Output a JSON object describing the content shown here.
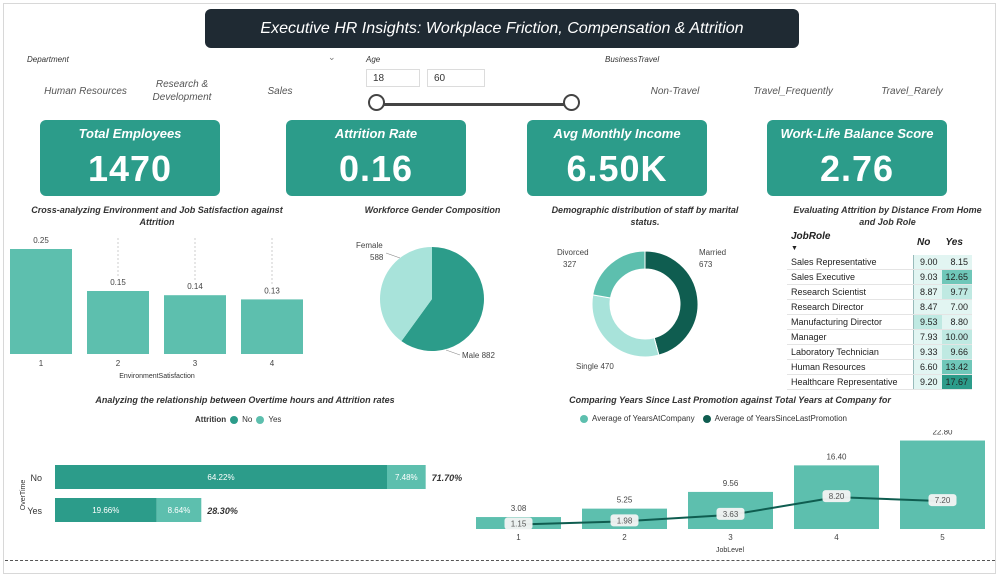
{
  "title": "Executive HR Insights: Workplace Friction, Compensation & Attrition",
  "slicers": {
    "department": {
      "title": "Department",
      "items": [
        "Human Resources",
        "Research & Development",
        "Sales"
      ]
    },
    "age": {
      "title": "Age",
      "min": "18",
      "max": "60"
    },
    "business_travel": {
      "title": "BusinessTravel",
      "items": [
        "Non-Travel",
        "Travel_Frequently",
        "Travel_Rarely"
      ]
    }
  },
  "kpis": [
    {
      "label": "Total Employees",
      "value": "1470"
    },
    {
      "label": "Attrition Rate",
      "value": "0.16"
    },
    {
      "label": "Avg Monthly Income",
      "value": "6.50K"
    },
    {
      "label": "Work-Life Balance Score",
      "value": "2.76"
    }
  ],
  "colors": {
    "teal": "#2c9c8a",
    "teal_light": "#5dbfae",
    "teal_pale": "#a8e3da",
    "dark_teal": "#0f5d50",
    "navy": "#1f2a33"
  },
  "chart_data": [
    {
      "type": "bar",
      "title": "Cross-analyzing Environment and Job Satisfaction against Attrition",
      "xlabel": "EnvironmentSatisfaction",
      "categories": [
        "1",
        "2",
        "3",
        "4"
      ],
      "values": [
        0.25,
        0.15,
        0.14,
        0.13
      ],
      "ylim": [
        0,
        0.3
      ]
    },
    {
      "type": "pie",
      "title": "Workforce Gender Composition",
      "labels": [
        "Female",
        "Male"
      ],
      "values": [
        588,
        882
      ]
    },
    {
      "type": "pie",
      "donut": true,
      "title": "Demographic distribution of staff by marital status.",
      "labels": [
        "Divorced",
        "Married",
        "Single"
      ],
      "values": [
        327,
        673,
        470
      ]
    },
    {
      "type": "table",
      "title": "Evaluating Attrition by Distance From Home and Job Role",
      "columns": [
        "JobRole",
        "No",
        "Yes"
      ],
      "rows": [
        [
          "Sales Representative",
          "9.00",
          "8.15"
        ],
        [
          "Sales Executive",
          "9.03",
          "12.65"
        ],
        [
          "Research Scientist",
          "8.87",
          "9.77"
        ],
        [
          "Research Director",
          "8.47",
          "7.00"
        ],
        [
          "Manufacturing Director",
          "9.53",
          "8.80"
        ],
        [
          "Manager",
          "7.93",
          "10.00"
        ],
        [
          "Laboratory Technician",
          "9.33",
          "9.66"
        ],
        [
          "Human Resources",
          "6.60",
          "13.42"
        ],
        [
          "Healthcare Representative",
          "9.20",
          "17.67"
        ]
      ]
    },
    {
      "type": "bar",
      "orientation": "horizontal",
      "stacked": true,
      "title": "Analyzing the relationship between Overtime hours and Attrition rates",
      "legend_title": "Attrition",
      "ylabel": "OverTime",
      "categories": [
        "No",
        "Yes"
      ],
      "series": [
        {
          "name": "No",
          "values": [
            64.22,
            19.66
          ],
          "labels": [
            "64.22%",
            "19.66%"
          ]
        },
        {
          "name": "Yes",
          "values": [
            7.48,
            8.64
          ],
          "labels": [
            "7.48%",
            "8.64%"
          ]
        }
      ],
      "totals": [
        "71.70%",
        "28.30%"
      ],
      "legend": "top-center"
    },
    {
      "type": "bar",
      "combo": true,
      "title": "Comparing Years Since Last Promotion against Total Years at Company for",
      "xlabel": "JobLevel",
      "categories": [
        "1",
        "2",
        "3",
        "4",
        "5"
      ],
      "series": [
        {
          "name": "Average of YearsAtCompany",
          "type": "bar",
          "values": [
            3.08,
            5.25,
            9.56,
            16.4,
            22.8
          ]
        },
        {
          "name": "Average of YearsSinceLastPromotion",
          "type": "line",
          "values": [
            1.15,
            1.98,
            3.63,
            8.2,
            7.2
          ]
        }
      ],
      "legend": "top-center"
    }
  ]
}
